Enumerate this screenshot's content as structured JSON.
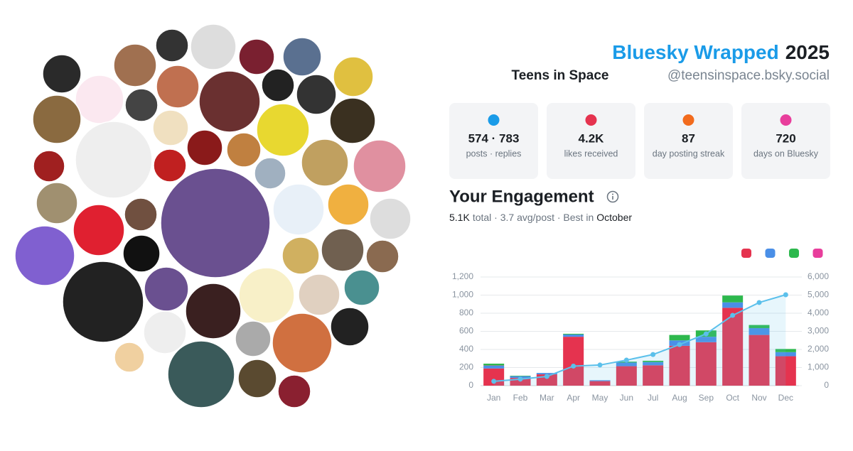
{
  "header": {
    "title": "Bluesky Wrapped",
    "year": "2025",
    "name": "Teens in Space",
    "handle": "@teensinspace.bsky.social"
  },
  "stats": [
    {
      "value": "574 · 783",
      "label": "posts · replies"
    },
    {
      "value": "4.2K",
      "label": "likes received"
    },
    {
      "value": "87",
      "label": "day posting streak"
    },
    {
      "value": "720",
      "label": "days on Bluesky"
    }
  ],
  "engagement": {
    "title": "Your Engagement",
    "total": "5.1K",
    "middle": "total · 3.7 avg/post · Best in",
    "best": "October"
  },
  "chart_data": {
    "type": "bar",
    "categories": [
      "Jan",
      "Feb",
      "Mar",
      "Apr",
      "May",
      "Jun",
      "Jul",
      "Aug",
      "Sep",
      "Oct",
      "Nov",
      "Dec"
    ],
    "series": [
      {
        "color": "#e5334f",
        "values": [
          190,
          85,
          125,
          540,
          50,
          215,
          225,
          440,
          480,
          860,
          560,
          325
        ]
      },
      {
        "color": "#4a8fe7",
        "values": [
          30,
          20,
          15,
          25,
          10,
          40,
          35,
          60,
          60,
          60,
          75,
          45
        ]
      },
      {
        "color": "#e83e9c",
        "values": [
          3,
          0,
          0,
          0,
          0,
          0,
          0,
          0,
          0,
          0,
          0,
          0
        ]
      },
      {
        "color": "#2db84d",
        "values": [
          20,
          5,
          0,
          8,
          0,
          10,
          15,
          60,
          70,
          75,
          35,
          35
        ]
      },
      {
        "type": "line",
        "axis": "y2",
        "color": "#5bc0eb",
        "values": [
          240,
          360,
          510,
          1080,
          1140,
          1410,
          1720,
          2270,
          2860,
          3880,
          4590,
          5020
        ]
      }
    ],
    "ylim": [
      0,
      1200
    ],
    "yticks": [
      0,
      200,
      400,
      600,
      800,
      {
        "value": 1000,
        "label": "1,000"
      },
      {
        "value": 1200,
        "label": "1,200"
      }
    ],
    "y2lim": [
      0,
      6000
    ],
    "y2ticks": [
      0,
      {
        "value": 1000,
        "label": "1,000"
      },
      {
        "value": 2000,
        "label": "2,000"
      },
      {
        "value": 3000,
        "label": "3,000"
      },
      {
        "value": 4000,
        "label": "4,000"
      },
      {
        "value": 5000,
        "label": "5,000"
      },
      {
        "value": 6000,
        "label": "6,000"
      }
    ],
    "grid": true
  }
}
